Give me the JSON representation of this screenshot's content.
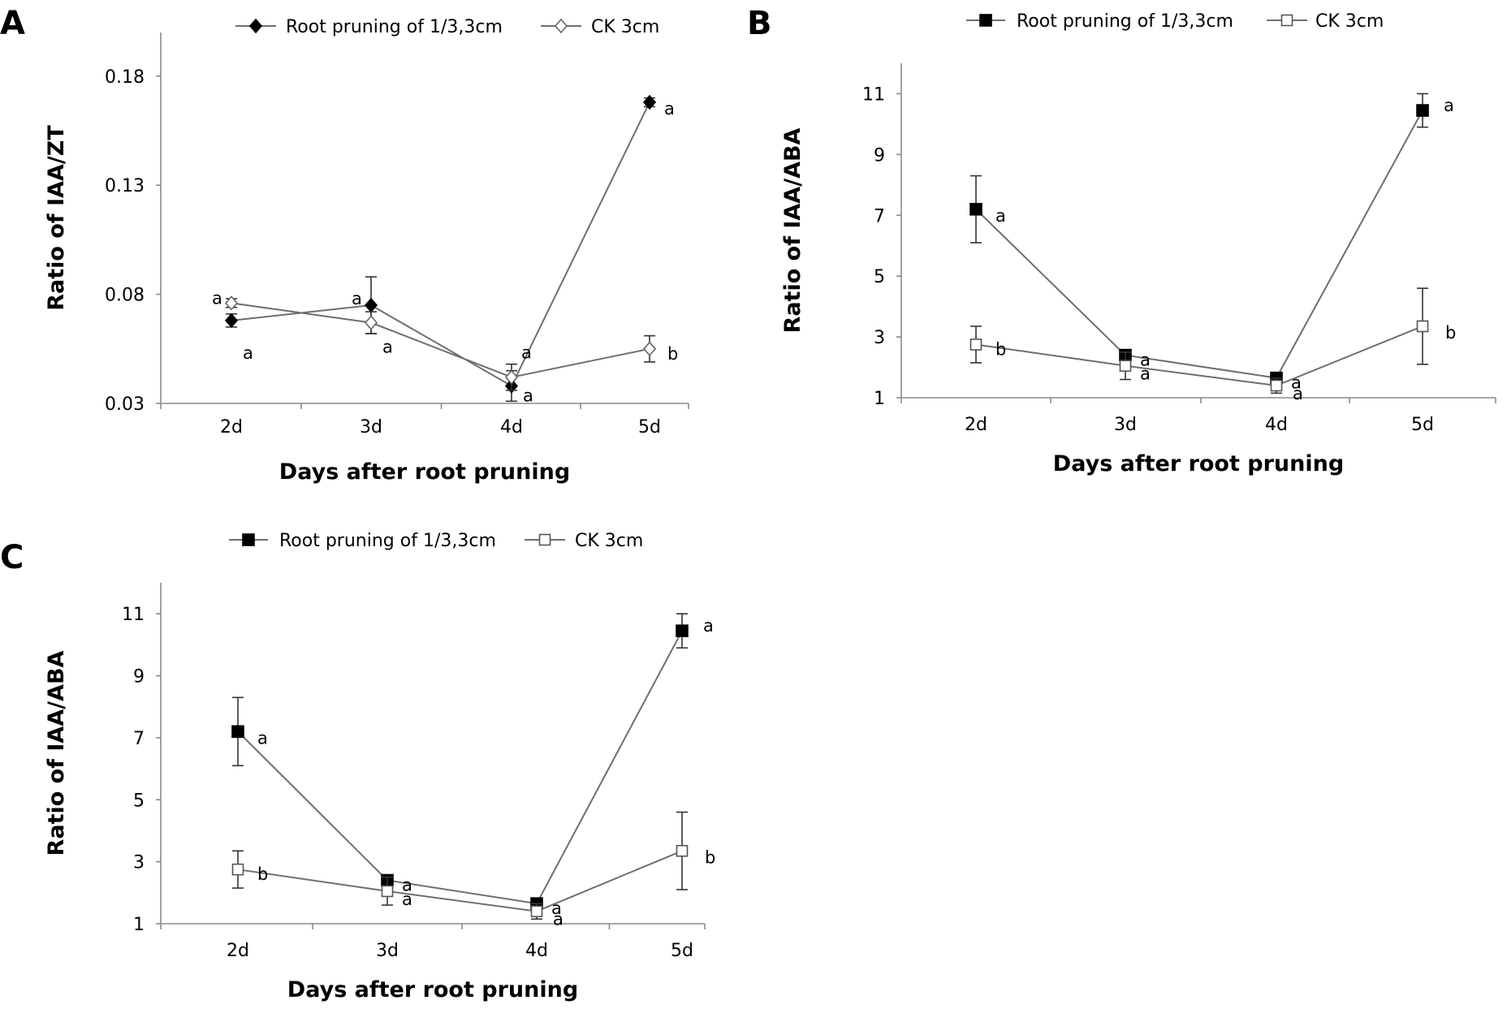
{
  "chart_data": [
    {
      "panel": "A",
      "type": "line",
      "ylabel": "Ratio of IAA/ZT",
      "xlabel": "Days after root pruning",
      "categories": [
        "2d",
        "3d",
        "4d",
        "5d"
      ],
      "ylim": [
        0.03,
        0.2
      ],
      "yticks": [
        "0.03",
        "0.08",
        "0.13",
        "0.18"
      ],
      "ytick_values": [
        0.03,
        0.08,
        0.13,
        0.18
      ],
      "legend_position": "top",
      "series": [
        {
          "name": "Root pruning of 1/3,3cm",
          "marker": "diamond-filled",
          "values": [
            0.068,
            0.075,
            0.038,
            0.168
          ],
          "errors": [
            0.003,
            0.013,
            0.007,
            0.002
          ],
          "labels": [
            "a",
            "a",
            "a",
            "a"
          ]
        },
        {
          "name": "CK 3cm",
          "marker": "diamond-open",
          "values": [
            0.076,
            0.067,
            0.042,
            0.055
          ],
          "errors": [
            0.002,
            0.005,
            0.006,
            0.006
          ],
          "labels": [
            "a",
            "a",
            "a",
            "b"
          ]
        }
      ]
    },
    {
      "panel": "B",
      "type": "line",
      "ylabel": "Ratio of IAA/ABA",
      "xlabel": "Days after root pruning",
      "categories": [
        "2d",
        "3d",
        "4d",
        "5d"
      ],
      "ylim": [
        1,
        12
      ],
      "yticks": [
        "1",
        "3",
        "5",
        "7",
        "9",
        "11"
      ],
      "ytick_values": [
        1,
        3,
        5,
        7,
        9,
        11
      ],
      "legend_position": "top",
      "series": [
        {
          "name": "Root pruning of 1/3,3cm",
          "marker": "square-filled",
          "values": [
            7.2,
            2.4,
            1.65,
            10.45
          ],
          "errors": [
            1.1,
            0.1,
            0.15,
            0.55
          ],
          "labels": [
            "a",
            "a",
            "a",
            "a"
          ]
        },
        {
          "name": "CK 3cm",
          "marker": "square-open",
          "values": [
            2.75,
            2.05,
            1.4,
            3.35
          ],
          "errors": [
            0.6,
            0.45,
            0.25,
            1.25
          ],
          "labels": [
            "b",
            "a",
            "a",
            "b"
          ]
        }
      ]
    },
    {
      "panel": "C",
      "type": "line",
      "ylabel": "Ratio of IAA/ABA",
      "xlabel": "Days after root pruning",
      "categories": [
        "2d",
        "3d",
        "4d",
        "5d"
      ],
      "ylim": [
        1,
        12
      ],
      "yticks": [
        "1",
        "3",
        "5",
        "7",
        "9",
        "11"
      ],
      "ytick_values": [
        1,
        3,
        5,
        7,
        9,
        11
      ],
      "legend_position": "top",
      "series": [
        {
          "name": "Root pruning of 1/3,3cm",
          "marker": "square-filled",
          "values": [
            7.2,
            2.4,
            1.65,
            10.45
          ],
          "errors": [
            1.1,
            0.1,
            0.15,
            0.55
          ],
          "labels": [
            "a",
            "a",
            "a",
            "a"
          ]
        },
        {
          "name": "CK 3cm",
          "marker": "square-open",
          "values": [
            2.75,
            2.05,
            1.4,
            3.35
          ],
          "errors": [
            0.6,
            0.45,
            0.25,
            1.25
          ],
          "labels": [
            "b",
            "a",
            "a",
            "b"
          ]
        }
      ]
    }
  ]
}
